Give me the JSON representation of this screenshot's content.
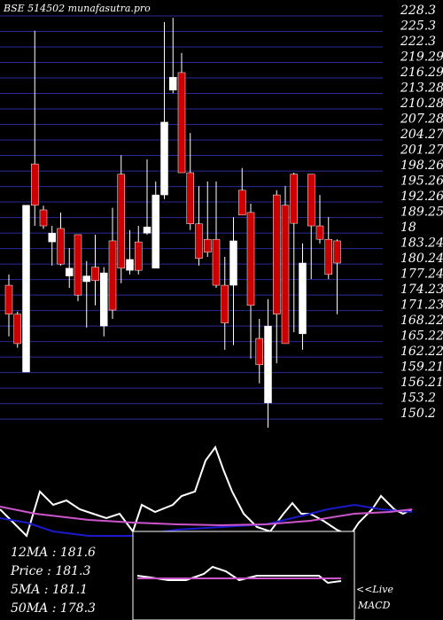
{
  "chart_data": [
    {
      "type": "candlestick",
      "title": "BSE 514502 munafasutra.pro",
      "open": [
        175.1,
        169.5,
        158.3,
        198.6,
        189.7,
        183.5,
        186.1,
        176.9,
        184.9,
        175.8,
        178.6,
        167.2,
        183.7,
        196.6,
        178.0,
        183.5,
        185.2,
        178.4,
        192.6,
        212.9,
        216.3,
        196.9,
        187.0,
        184.0,
        184.0,
        175.1,
        175.1,
        193.5,
        189.2,
        164.8,
        152.3,
        192.6,
        190.6,
        196.6,
        165.7,
        196.6,
        186.6,
        184.0,
        183.7
      ],
      "high": [
        177.2,
        170.0,
        190.6,
        224.4,
        190.5,
        186.6,
        189.2,
        182.3,
        184.9,
        179.8,
        184.9,
        178.6,
        190.1,
        200.3,
        185.8,
        186.6,
        199.5,
        195.2,
        226.1,
        226.9,
        220.1,
        204.6,
        194.3,
        195.2,
        195.2,
        180.6,
        188.3,
        197.8,
        190.9,
        168.6,
        172.4,
        193.5,
        194.3,
        196.9,
        183.2,
        196.6,
        192.6,
        188.3,
        184.0
      ],
      "low": [
        165.2,
        163.0,
        158.3,
        186.6,
        186.0,
        178.9,
        178.9,
        174.6,
        172.0,
        166.9,
        171.2,
        165.2,
        168.6,
        175.5,
        177.2,
        177.2,
        184.9,
        178.4,
        191.8,
        212.3,
        196.9,
        185.8,
        178.9,
        180.6,
        174.6,
        162.6,
        163.5,
        188.7,
        160.9,
        156.1,
        147.5,
        160.0,
        163.8,
        166.0,
        162.6,
        176.3,
        183.2,
        176.3,
        169.5
      ],
      "close": [
        169.5,
        163.8,
        190.6,
        190.6,
        186.6,
        185.2,
        179.2,
        178.4,
        173.2,
        176.9,
        176.0,
        177.5,
        170.3,
        178.4,
        180.1,
        178.0,
        186.4,
        192.6,
        206.7,
        215.4,
        196.9,
        187.0,
        180.3,
        181.5,
        175.1,
        167.8,
        183.7,
        188.7,
        171.2,
        159.7,
        167.2,
        169.5,
        163.8,
        187.1,
        179.4,
        186.6,
        184.0,
        177.2,
        179.4
      ],
      "up_color": "#ffffff",
      "down_color": "#cc0000",
      "ylim": [
        148.0,
        230.36
      ],
      "yticks": [
        228.3,
        225.3,
        222.3,
        219.29,
        216.29,
        213.28,
        210.28,
        207.28,
        204.27,
        201.27,
        198.26,
        195.26,
        192.26,
        189.25,
        {
          "value": 186.25,
          "label": "18"
        },
        183.24,
        180.24,
        177.24,
        174.23,
        171.23,
        168.22,
        165.22,
        162.22,
        159.21,
        156.21,
        153.2,
        150.2
      ],
      "grid": true,
      "grid_color": "#2a2a9a"
    },
    {
      "type": "line",
      "xlim": [
        0,
        500
      ],
      "ylim": [
        0,
        240
      ],
      "series": [
        {
          "color": "#ffffff",
          "x": [
            0,
            15,
            30,
            45,
            60,
            75,
            90,
            105,
            120,
            135,
            150,
            160,
            175,
            195,
            205,
            220,
            232,
            243,
            252,
            262,
            275,
            290,
            305,
            320,
            330,
            340,
            350,
            365,
            380,
            395,
            405,
            420,
            430,
            445,
            455,
            465
          ],
          "values": [
            125,
            110,
            95,
            145,
            130,
            135,
            125,
            120,
            115,
            120,
            100,
            130,
            122,
            130,
            140,
            145,
            180,
            195,
            170,
            145,
            120,
            105,
            100,
            120,
            132,
            120,
            120,
            112,
            102,
            95,
            110,
            125,
            140,
            125,
            120,
            125
          ]
        },
        {
          "color": "#1a1acc",
          "x": [
            0,
            30,
            60,
            100,
            150,
            200,
            250,
            300,
            330,
            370,
            400,
            430,
            465
          ],
          "values": [
            115,
            110,
            100,
            95,
            95,
            102,
            105,
            108,
            115,
            125,
            130,
            125,
            122
          ]
        },
        {
          "color": "#cc55cc",
          "x": [
            0,
            40,
            100,
            150,
            200,
            250,
            300,
            350,
            400,
            440,
            465
          ],
          "values": [
            128,
            120,
            113,
            110,
            108,
            107,
            108,
            112,
            120,
            122,
            125
          ]
        }
      ],
      "annotations": [
        "12MA : 181.6",
        "Price  : 181.3",
        "5MA : 181.1",
        "50MA : 178.3"
      ]
    },
    {
      "type": "line",
      "title": "MACD",
      "note": "<<Live",
      "xlim": [
        150,
        400
      ],
      "ylim": [
        0,
        100
      ],
      "series": [
        {
          "color": "#ffffff",
          "x": [
            155,
            170,
            190,
            210,
            230,
            240,
            255,
            270,
            290,
            320,
            360,
            370,
            385
          ],
          "values": [
            50,
            48,
            45,
            45,
            52,
            60,
            55,
            45,
            50,
            50,
            50,
            42,
            44
          ]
        },
        {
          "color": "#cc55cc",
          "x": [
            155,
            385
          ],
          "values": [
            47,
            47
          ]
        }
      ]
    }
  ]
}
